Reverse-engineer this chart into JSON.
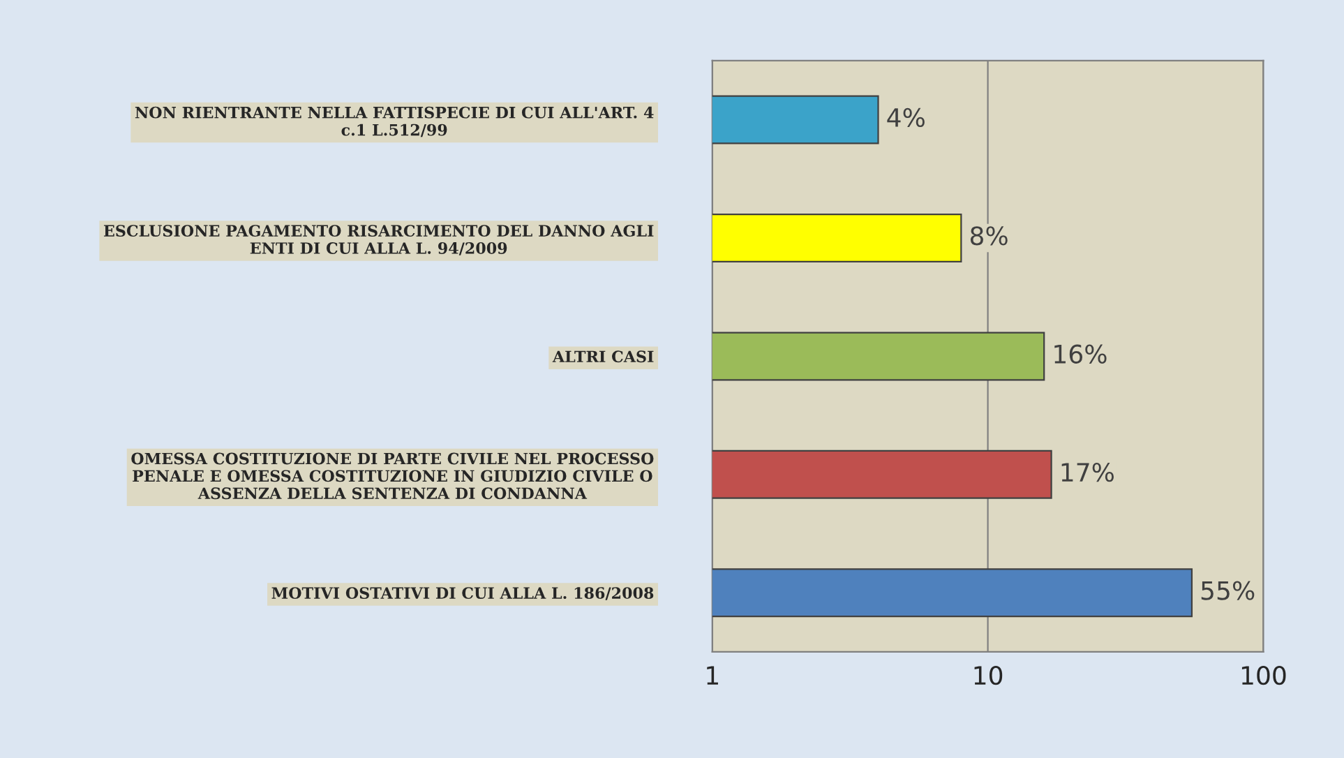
{
  "chart_data": {
    "type": "bar",
    "orientation": "horizontal",
    "log": "x",
    "categories": [
      "NON RIENTRANTE NELLA FATTISPECIE DI CUI ALL'ART. 4\nc.1 L.512/99",
      "ESCLUSIONE PAGAMENTO RISARCIMENTO DEL DANNO AGLI\nENTI DI CUI ALLA L. 94/2009",
      "ALTRI CASI",
      "OMESSA COSTITUZIONE DI PARTE CIVILE NEL PROCESSO\nPENALE E OMESSA COSTITUZIONE IN GIUDIZIO CIVILE O\nASSENZA DELLA SENTENZA DI CONDANNA",
      "MOTIVI OSTATIVI DI CUI ALLA L. 186/2008"
    ],
    "values": [
      4,
      8,
      16,
      17,
      55
    ],
    "value_labels": [
      "4%",
      "8%",
      "16%",
      "17%",
      "55%"
    ],
    "colors": [
      "#3ba3c9",
      "#ffff00",
      "#9bbb59",
      "#c0504d",
      "#4f81bd"
    ],
    "xlim": [
      1,
      100
    ],
    "xticks": [
      1,
      10,
      100
    ],
    "grid": "x"
  }
}
